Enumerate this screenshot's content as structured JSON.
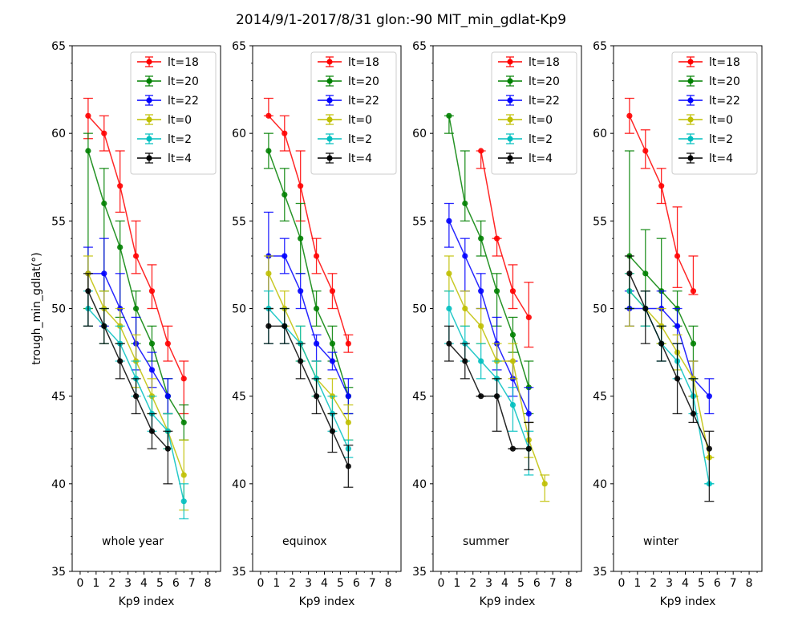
{
  "suptitle": "2014/9/1-2017/8/31 glon:-90 MIT_min_gdlat-Kp9",
  "chart_data": [
    {
      "type": "line",
      "annotation": "whole year",
      "xlabel": "Kp9 index",
      "ylabel": "trough_min_gdlat(°)",
      "xlim": [
        -0.5,
        8.8
      ],
      "ylim": [
        35,
        65
      ],
      "xticks": [
        0,
        1,
        2,
        3,
        4,
        5,
        6,
        7,
        8
      ],
      "yticks": [
        35,
        40,
        45,
        50,
        55,
        60,
        65
      ],
      "legend_position": "top-right",
      "series": [
        {
          "name": "lt=18",
          "color": "#ff0000",
          "x": [
            0.5,
            1.5,
            2.5,
            3.5,
            4.5,
            5.5,
            6.5
          ],
          "y": [
            61,
            60,
            57,
            53,
            51,
            48,
            46
          ],
          "yerr_low": [
            1.3,
            1,
            1.5,
            1,
            1,
            1,
            2
          ],
          "yerr_high": [
            1,
            1,
            2,
            2,
            1.5,
            1,
            1
          ]
        },
        {
          "name": "lt=20",
          "color": "#008000",
          "x": [
            0.5,
            1.5,
            2.5,
            3.5,
            4.5,
            5.5,
            6.5
          ],
          "y": [
            59,
            56,
            53.5,
            50,
            48,
            45,
            43.5
          ],
          "yerr_low": [
            9,
            5,
            4,
            2,
            1,
            1,
            1
          ],
          "yerr_high": [
            1,
            2,
            1.5,
            1,
            1,
            1,
            1
          ]
        },
        {
          "name": "lt=22",
          "color": "#0000ff",
          "x": [
            0.5,
            1.5,
            2.5,
            3.5,
            4.5,
            5.5
          ],
          "y": [
            52,
            52,
            50,
            48,
            46.5,
            45
          ],
          "yerr_low": [
            3,
            3,
            2,
            1.5,
            1,
            1
          ],
          "yerr_high": [
            1.5,
            2,
            2,
            1.5,
            1,
            1
          ]
        },
        {
          "name": "lt=0",
          "color": "#bfbf00",
          "x": [
            0.5,
            1.5,
            2.5,
            3.5,
            4.5,
            5.5,
            6.5
          ],
          "y": [
            52,
            50,
            49,
            47,
            45,
            43,
            40.5
          ],
          "yerr_low": [
            3,
            2,
            1,
            1.5,
            1,
            1,
            2
          ],
          "yerr_high": [
            1,
            1,
            1,
            1.5,
            1,
            1,
            2
          ]
        },
        {
          "name": "lt=2",
          "color": "#00bfbf",
          "x": [
            0.5,
            1.5,
            2.5,
            3.5,
            4.5,
            5.5,
            6.5
          ],
          "y": [
            50,
            49,
            48,
            46,
            44,
            43,
            39
          ],
          "yerr_low": [
            1,
            1,
            1,
            1,
            1,
            1,
            1
          ],
          "yerr_high": [
            1,
            1,
            1,
            1,
            1,
            1,
            1
          ]
        },
        {
          "name": "lt=4",
          "color": "#000000",
          "x": [
            0.5,
            1.5,
            2.5,
            3.5,
            4.5,
            5.5
          ],
          "y": [
            51,
            49,
            47,
            45,
            43,
            42
          ],
          "yerr_low": [
            2,
            1,
            1,
            1,
            1,
            2
          ],
          "yerr_high": [
            1,
            1,
            1,
            1,
            1,
            1
          ]
        }
      ]
    },
    {
      "type": "line",
      "annotation": "equinox",
      "xlabel": "Kp9 index",
      "ylabel": "",
      "xlim": [
        -0.5,
        8.8
      ],
      "ylim": [
        35,
        65
      ],
      "xticks": [
        0,
        1,
        2,
        3,
        4,
        5,
        6,
        7,
        8
      ],
      "yticks": [
        35,
        40,
        45,
        50,
        55,
        60,
        65
      ],
      "legend_position": "top-right",
      "series": [
        {
          "name": "lt=18",
          "color": "#ff0000",
          "x": [
            0.5,
            1.5,
            2.5,
            3.5,
            4.5,
            5.5
          ],
          "y": [
            61,
            60,
            57,
            53,
            51,
            48
          ],
          "yerr_low": [
            0,
            1,
            2,
            1,
            1,
            0.5
          ],
          "yerr_high": [
            1,
            1,
            2,
            1,
            1,
            0.5
          ]
        },
        {
          "name": "lt=20",
          "color": "#008000",
          "x": [
            0.5,
            1.5,
            2.5,
            3.5,
            4.5,
            5.5
          ],
          "y": [
            59,
            56.5,
            54,
            50,
            48,
            45
          ],
          "yerr_low": [
            1,
            1.5,
            2,
            1,
            1,
            1
          ],
          "yerr_high": [
            1,
            1.5,
            2,
            1,
            1,
            0.5
          ]
        },
        {
          "name": "lt=22",
          "color": "#0000ff",
          "x": [
            0.5,
            1.5,
            2.5,
            3.5,
            4.5,
            5.5
          ],
          "y": [
            53,
            53,
            51,
            48,
            47,
            45
          ],
          "yerr_low": [
            3,
            1,
            1,
            1,
            0.5,
            1
          ],
          "yerr_high": [
            2.5,
            1,
            1,
            0.5,
            0.5,
            1
          ]
        },
        {
          "name": "lt=0",
          "color": "#bfbf00",
          "x": [
            0.5,
            1.5,
            2.5,
            3.5,
            4.5,
            5.5
          ],
          "y": [
            52,
            50,
            48,
            46,
            45,
            43.5
          ],
          "yerr_low": [
            2,
            1,
            1,
            1,
            1,
            1
          ],
          "yerr_high": [
            1,
            1,
            1,
            1,
            1,
            1
          ]
        },
        {
          "name": "lt=2",
          "color": "#00bfbf",
          "x": [
            0.5,
            1.5,
            2.5,
            3.5,
            4.5,
            5.5
          ],
          "y": [
            50,
            49,
            48,
            46,
            44,
            42
          ],
          "yerr_low": [
            2,
            1,
            1,
            1,
            1,
            0.5
          ],
          "yerr_high": [
            1,
            1,
            1,
            1,
            1,
            0.5
          ]
        },
        {
          "name": "lt=4",
          "color": "#000000",
          "x": [
            0.5,
            1.5,
            2.5,
            3.5,
            4.5,
            5.5
          ],
          "y": [
            49,
            49,
            47,
            45,
            43,
            41
          ],
          "yerr_low": [
            1,
            1,
            1,
            1,
            1.2,
            1.2
          ],
          "yerr_high": [
            1,
            1,
            1,
            1,
            1,
            1.2
          ]
        }
      ]
    },
    {
      "type": "line",
      "annotation": "summer",
      "xlabel": "Kp9 index",
      "ylabel": "",
      "xlim": [
        -0.5,
        8.8
      ],
      "ylim": [
        35,
        65
      ],
      "xticks": [
        0,
        1,
        2,
        3,
        4,
        5,
        6,
        7,
        8
      ],
      "yticks": [
        35,
        40,
        45,
        50,
        55,
        60,
        65
      ],
      "legend_position": "top-right",
      "series": [
        {
          "name": "lt=18",
          "color": "#ff0000",
          "x": [
            2.5,
            3.5,
            4.5,
            5.5
          ],
          "y": [
            59,
            54,
            51,
            49.5
          ],
          "yerr_low": [
            1,
            1,
            1,
            1.7
          ],
          "yerr_high": [
            0,
            0,
            1.5,
            2
          ]
        },
        {
          "name": "lt=20",
          "color": "#008000",
          "x": [
            0.5,
            1.5,
            2.5,
            3.5,
            4.5,
            5.5
          ],
          "y": [
            61,
            56,
            54,
            51,
            48.5,
            45.5
          ],
          "yerr_low": [
            1,
            1,
            1,
            2,
            1,
            1.5
          ],
          "yerr_high": [
            0,
            3,
            1,
            1,
            1,
            1.5
          ]
        },
        {
          "name": "lt=22",
          "color": "#0000ff",
          "x": [
            0.5,
            1.5,
            2.5,
            3.5,
            4.5,
            5.5
          ],
          "y": [
            55,
            53,
            51,
            48,
            46,
            44
          ],
          "yerr_low": [
            1.5,
            2,
            1,
            1.5,
            1,
            0.5
          ],
          "yerr_high": [
            1,
            1,
            1,
            1.5,
            1,
            1.5
          ]
        },
        {
          "name": "lt=0",
          "color": "#bfbf00",
          "x": [
            0.5,
            1.5,
            2.5,
            3.5,
            4.5,
            5.5,
            6.5
          ],
          "y": [
            52,
            50,
            49,
            47,
            47,
            42.5,
            40
          ],
          "yerr_low": [
            1,
            1,
            1,
            1,
            1,
            1,
            1
          ],
          "yerr_high": [
            1,
            1,
            1,
            1,
            1,
            1,
            0.5
          ]
        },
        {
          "name": "lt=2",
          "color": "#00bfbf",
          "x": [
            0.5,
            1.5,
            2.5,
            3.5,
            4.5,
            5.5
          ],
          "y": [
            50,
            48,
            47,
            46,
            44.5,
            42
          ],
          "yerr_low": [
            2,
            1,
            1,
            1,
            1.5,
            1.5
          ],
          "yerr_high": [
            1,
            1,
            1,
            1,
            1,
            1
          ]
        },
        {
          "name": "lt=4",
          "color": "#000000",
          "x": [
            0.5,
            1.5,
            2.5,
            3.5,
            4.5,
            5.5
          ],
          "y": [
            48,
            47,
            45,
            45,
            42,
            42
          ],
          "yerr_low": [
            1,
            1,
            0,
            2,
            0,
            1.2
          ],
          "yerr_high": [
            1,
            1,
            0,
            1,
            0,
            1.5
          ]
        }
      ]
    },
    {
      "type": "line",
      "annotation": "winter",
      "xlabel": "Kp9 index",
      "ylabel": "",
      "xlim": [
        -0.5,
        8.8
      ],
      "ylim": [
        35,
        65
      ],
      "xticks": [
        0,
        1,
        2,
        3,
        4,
        5,
        6,
        7,
        8
      ],
      "yticks": [
        35,
        40,
        45,
        50,
        55,
        60,
        65
      ],
      "legend_position": "top-right",
      "series": [
        {
          "name": "lt=18",
          "color": "#ff0000",
          "x": [
            0.5,
            1.5,
            2.5,
            3.5,
            4.5
          ],
          "y": [
            61,
            59,
            57,
            53,
            51
          ],
          "yerr_low": [
            1,
            1,
            1,
            1.8,
            0.2
          ],
          "yerr_high": [
            1,
            1.2,
            1,
            2.8,
            2
          ]
        },
        {
          "name": "lt=20",
          "color": "#008000",
          "x": [
            0.5,
            1.5,
            2.5,
            3.5,
            4.5
          ],
          "y": [
            53,
            52,
            51,
            50,
            48
          ],
          "yerr_low": [
            3,
            3,
            3,
            1,
            3
          ],
          "yerr_high": [
            6,
            2.5,
            3,
            1,
            1
          ]
        },
        {
          "name": "lt=22",
          "color": "#0000ff",
          "x": [
            0.5,
            1.5,
            2.5,
            3.5,
            4.5,
            5.5
          ],
          "y": [
            50,
            50,
            50,
            49,
            46,
            45
          ],
          "yerr_low": [
            1,
            1,
            1,
            1,
            1,
            1
          ],
          "yerr_high": [
            1,
            1,
            1,
            1,
            1,
            1
          ]
        },
        {
          "name": "lt=0",
          "color": "#bfbf00",
          "x": [
            0.5,
            1.5,
            2.5,
            3.5,
            4.5,
            5.5
          ],
          "y": [
            51,
            50,
            49,
            47.5,
            46,
            41.5
          ],
          "yerr_low": [
            2,
            1,
            1,
            1,
            1,
            0
          ],
          "yerr_high": [
            1,
            1,
            1,
            1,
            1,
            0
          ]
        },
        {
          "name": "lt=2",
          "color": "#00bfbf",
          "x": [
            0.5,
            1.5,
            2.5,
            3.5,
            4.5,
            5.5
          ],
          "y": [
            51,
            50,
            48,
            47,
            45,
            40
          ],
          "yerr_low": [
            1,
            1,
            1,
            1,
            1,
            0
          ],
          "yerr_high": [
            1,
            1,
            1,
            1,
            1,
            0
          ]
        },
        {
          "name": "lt=4",
          "color": "#000000",
          "x": [
            0.5,
            1.5,
            2.5,
            3.5,
            4.5,
            5.5
          ],
          "y": [
            52,
            50,
            48,
            46,
            44,
            42
          ],
          "yerr_low": [
            2,
            2,
            1,
            2,
            0.5,
            3
          ],
          "yerr_high": [
            1,
            1,
            1,
            2,
            2,
            1
          ]
        }
      ]
    }
  ]
}
